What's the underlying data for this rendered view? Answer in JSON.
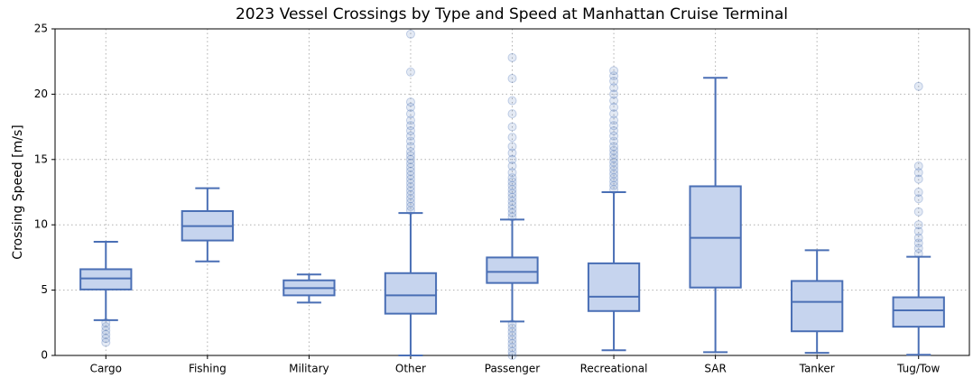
{
  "chart_data": {
    "type": "box",
    "title": "2023 Vessel Crossings by Type and Speed at Manhattan Cruise Terminal",
    "ylabel": "Crossing Speed [m/s]",
    "categories": [
      "Cargo",
      "Fishing",
      "Military",
      "Other",
      "Passenger",
      "Recreational",
      "SAR",
      "Tanker",
      "Tug/Tow"
    ],
    "boxes": [
      {
        "whislo": 2.7,
        "q1": 5.05,
        "med": 5.9,
        "q3": 6.6,
        "whishi": 8.7,
        "fliers": [
          2.5,
          2.2,
          1.9,
          1.6,
          1.3,
          1.0
        ]
      },
      {
        "whislo": 7.2,
        "q1": 8.8,
        "med": 9.9,
        "q3": 11.05,
        "whishi": 12.8,
        "fliers": []
      },
      {
        "whislo": 4.05,
        "q1": 4.6,
        "med": 5.15,
        "q3": 5.75,
        "whishi": 6.2,
        "fliers": []
      },
      {
        "whislo": 0.0,
        "q1": 3.2,
        "med": 4.6,
        "q3": 6.3,
        "whishi": 10.9,
        "fliers": [
          11.1,
          11.4,
          11.7,
          12.0,
          12.3,
          12.6,
          12.9,
          13.2,
          13.5,
          13.8,
          14.1,
          14.4,
          14.7,
          15.0,
          15.3,
          15.6,
          16.0,
          16.4,
          16.8,
          17.2,
          17.6,
          18.0,
          18.5,
          19.0,
          19.4,
          21.7,
          24.6
        ]
      },
      {
        "whislo": 2.6,
        "q1": 5.55,
        "med": 6.4,
        "q3": 7.5,
        "whishi": 10.4,
        "fliers": [
          0.0,
          0.3,
          0.6,
          0.9,
          1.2,
          1.5,
          1.8,
          2.1,
          2.4,
          10.6,
          10.9,
          11.2,
          11.5,
          11.8,
          12.1,
          12.4,
          12.7,
          13.0,
          13.3,
          13.6,
          14.0,
          14.5,
          15.0,
          15.5,
          16.0,
          16.7,
          17.5,
          18.5,
          19.5,
          21.2,
          22.8
        ]
      },
      {
        "whislo": 0.4,
        "q1": 3.4,
        "med": 4.5,
        "q3": 7.05,
        "whishi": 12.5,
        "fliers": [
          12.7,
          13.0,
          13.3,
          13.6,
          13.9,
          14.2,
          14.5,
          14.8,
          15.1,
          15.4,
          15.7,
          16.0,
          16.4,
          16.8,
          17.2,
          17.6,
          18.0,
          18.5,
          19.0,
          19.5,
          20.0,
          20.5,
          21.0,
          21.4,
          21.8
        ]
      },
      {
        "whislo": 0.25,
        "q1": 5.2,
        "med": 9.0,
        "q3": 12.95,
        "whishi": 21.25,
        "fliers": []
      },
      {
        "whislo": 0.2,
        "q1": 1.85,
        "med": 4.1,
        "q3": 5.7,
        "whishi": 8.05,
        "fliers": []
      },
      {
        "whislo": 0.05,
        "q1": 2.2,
        "med": 3.45,
        "q3": 4.45,
        "whishi": 7.55,
        "fliers": [
          7.8,
          8.2,
          8.6,
          9.0,
          9.5,
          10.0,
          11.0,
          12.0,
          12.5,
          13.5,
          14.0,
          14.5,
          20.6
        ]
      }
    ],
    "color": "#4a6fb5",
    "fill": "#c6d4ee",
    "ylim": [
      0,
      25
    ],
    "yticks": [
      0,
      5,
      10,
      15,
      20,
      25
    ],
    "grid": true
  }
}
